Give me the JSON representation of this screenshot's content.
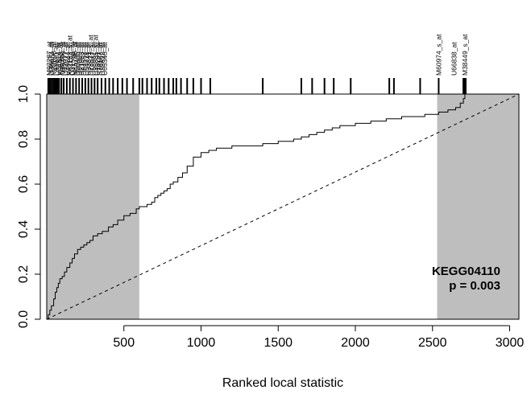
{
  "chart_data": {
    "type": "line",
    "title": "",
    "xlabel": "Ranked local statistic",
    "ylabel": "",
    "xlim": [
      0,
      3060
    ],
    "ylim": [
      0,
      1
    ],
    "x_ticks": [
      500,
      1000,
      1500,
      2000,
      2500,
      3000
    ],
    "y_ticks": [
      0.0,
      0.2,
      0.4,
      0.6,
      0.8,
      1.0
    ],
    "x_tick_labels": [
      "500",
      "1000",
      "1500",
      "2000",
      "2500",
      "3000"
    ],
    "y_tick_labels": [
      "0.0",
      "0.2",
      "0.4",
      "0.6",
      "0.8",
      "1.0"
    ],
    "shaded_regions": [
      {
        "x_start": 0,
        "x_end": 600,
        "color": "#bebebe"
      },
      {
        "x_start": 2530,
        "x_end": 3060,
        "color": "#bebebe"
      }
    ],
    "grid": false,
    "annotation": {
      "lines": [
        "KEGG04110",
        "p = 0.003"
      ],
      "placement": "bottom-right"
    },
    "series": [
      {
        "style": "solid",
        "x": [
          0,
          10,
          20,
          30,
          45,
          55,
          65,
          75,
          85,
          100,
          115,
          130,
          150,
          165,
          180,
          200,
          220,
          240,
          260,
          280,
          300,
          330,
          360,
          400,
          430,
          460,
          500,
          540,
          580,
          600,
          620,
          650,
          680,
          700,
          720,
          740,
          760,
          780,
          800,
          820,
          850,
          880,
          910,
          950,
          1000,
          1050,
          1100,
          1200,
          1300,
          1400,
          1500,
          1600,
          1650,
          1700,
          1750,
          1800,
          1850,
          1900,
          2000,
          2100,
          2200,
          2300,
          2450,
          2540,
          2600,
          2650,
          2680,
          2700,
          2710
        ],
        "y": [
          0.0,
          0.02,
          0.04,
          0.06,
          0.09,
          0.12,
          0.14,
          0.16,
          0.18,
          0.19,
          0.21,
          0.23,
          0.25,
          0.27,
          0.29,
          0.31,
          0.32,
          0.33,
          0.34,
          0.35,
          0.37,
          0.38,
          0.39,
          0.41,
          0.42,
          0.44,
          0.46,
          0.47,
          0.49,
          0.5,
          0.5,
          0.51,
          0.52,
          0.54,
          0.55,
          0.56,
          0.57,
          0.58,
          0.6,
          0.61,
          0.63,
          0.65,
          0.68,
          0.72,
          0.74,
          0.75,
          0.76,
          0.77,
          0.77,
          0.78,
          0.79,
          0.8,
          0.81,
          0.82,
          0.83,
          0.84,
          0.85,
          0.86,
          0.87,
          0.88,
          0.89,
          0.9,
          0.91,
          0.92,
          0.93,
          0.94,
          0.96,
          0.98,
          1.0
        ]
      },
      {
        "style": "dashed",
        "x": [
          0,
          3060
        ],
        "y": [
          0,
          1
        ]
      }
    ],
    "rug": {
      "positions": [
        10,
        20,
        25,
        35,
        45,
        55,
        60,
        65,
        70,
        80,
        95,
        110,
        130,
        150,
        170,
        190,
        210,
        230,
        250,
        270,
        290,
        310,
        330,
        355,
        380,
        405,
        430,
        460,
        490,
        520,
        560,
        600,
        620,
        650,
        680,
        710,
        730,
        760,
        790,
        820,
        840,
        870,
        910,
        950,
        1000,
        1060,
        1400,
        1650,
        1720,
        1800,
        1860,
        1970,
        2220,
        2250,
        2420,
        2540,
        2700,
        2710,
        2715
      ],
      "labels": [
        {
          "text": "M92287_at",
          "x": 15
        },
        {
          "text": "D38073_at",
          "x": 30
        },
        {
          "text": "M22898_at",
          "x": 45
        },
        {
          "text": "L41870_at",
          "x": 60
        },
        {
          "text": "U31814_at",
          "x": 75
        },
        {
          "text": "X56468_at",
          "x": 90
        },
        {
          "text": "M86400_at",
          "x": 105
        },
        {
          "text": "U47077_at",
          "x": 120
        },
        {
          "text": "U49844_at",
          "x": 135
        },
        {
          "text": "X62153_s_at",
          "x": 150
        },
        {
          "text": "U31556_at",
          "x": 165
        },
        {
          "text": "M15796_at",
          "x": 180
        },
        {
          "text": "D50405_at",
          "x": 195
        },
        {
          "text": "D80000_at",
          "x": 210
        },
        {
          "text": "D21063_at",
          "x": 225
        },
        {
          "text": "D84557_at",
          "x": 240
        },
        {
          "text": "U54778_at",
          "x": 255
        },
        {
          "text": "U33841_at",
          "x": 270
        },
        {
          "text": "D78577_s_at",
          "x": 285
        },
        {
          "text": "U58087_at",
          "x": 300
        },
        {
          "text": "U35835_s_at",
          "x": 315
        },
        {
          "text": "U18291_at",
          "x": 330
        },
        {
          "text": "S78187_at",
          "x": 345
        },
        {
          "text": "U33822_at",
          "x": 360
        },
        {
          "text": "U05340_at",
          "x": 375
        },
        {
          "text": "M60974_s_at",
          "x": 2540
        },
        {
          "text": "U66838_at",
          "x": 2640
        },
        {
          "text": "M38449_s_at",
          "x": 2710
        }
      ]
    }
  }
}
